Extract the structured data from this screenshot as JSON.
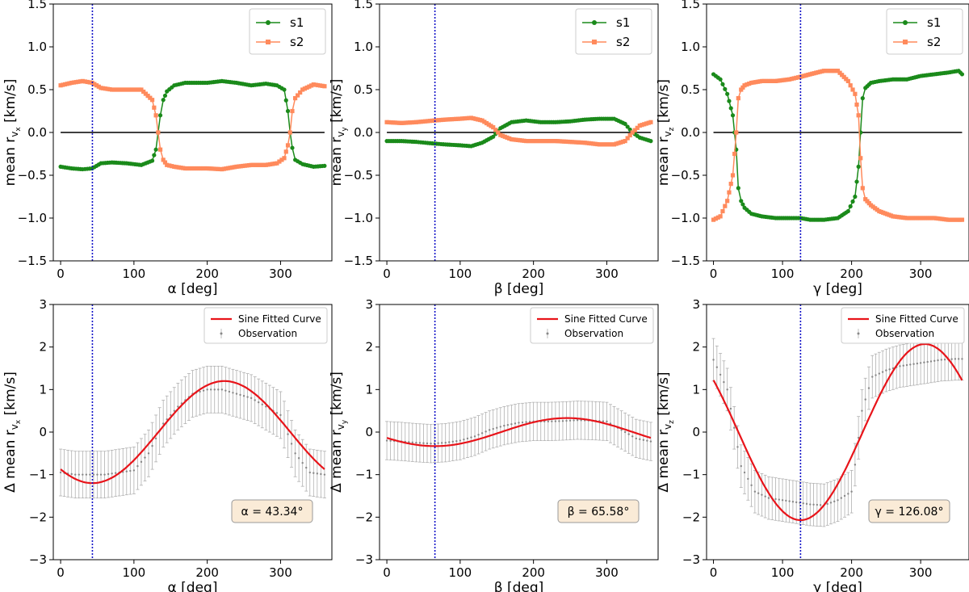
{
  "colors": {
    "s1": "#1a8a1a",
    "s2": "#ff8a5c",
    "fit": "#e8141a",
    "vline": "#1010c8",
    "zero": "#000000",
    "obs": "#888888",
    "annot_bg": "#faebd7"
  },
  "chart_data": [
    {
      "type": "line",
      "panel": "top-left",
      "xlabel": "α [deg]",
      "ylabel_main": "mean r",
      "ylabel_sub": "v",
      "ylabel_subsub": "x",
      "ylabel_unit": "[km/s]",
      "xlim": [
        -10,
        370
      ],
      "ylim": [
        -1.5,
        1.5
      ],
      "xticks": [
        0,
        100,
        200,
        300
      ],
      "yticks": [
        -1.5,
        -1.0,
        -0.5,
        0.0,
        0.5,
        1.0,
        1.5
      ],
      "vline": 43.34,
      "series": [
        {
          "name": "s1",
          "marker": "circle",
          "x": [
            0,
            15,
            30,
            43,
            55,
            70,
            90,
            110,
            125,
            130,
            133,
            136,
            140,
            145,
            155,
            170,
            185,
            200,
            220,
            240,
            260,
            280,
            295,
            305,
            310,
            313,
            316,
            320,
            330,
            345,
            360
          ],
          "y": [
            -0.4,
            -0.42,
            -0.43,
            -0.42,
            -0.36,
            -0.35,
            -0.36,
            -0.38,
            -0.33,
            -0.2,
            0.0,
            0.2,
            0.38,
            0.48,
            0.55,
            0.58,
            0.58,
            0.58,
            0.6,
            0.58,
            0.55,
            0.57,
            0.55,
            0.5,
            0.25,
            0.0,
            -0.18,
            -0.32,
            -0.37,
            -0.4,
            -0.39
          ]
        },
        {
          "name": "s2",
          "marker": "square",
          "x": [
            0,
            15,
            30,
            43,
            55,
            70,
            90,
            110,
            125,
            130,
            133,
            136,
            140,
            145,
            155,
            170,
            185,
            200,
            220,
            240,
            260,
            280,
            295,
            305,
            310,
            313,
            316,
            320,
            330,
            345,
            360
          ],
          "y": [
            0.55,
            0.58,
            0.6,
            0.58,
            0.52,
            0.5,
            0.5,
            0.5,
            0.38,
            0.2,
            0.0,
            -0.2,
            -0.32,
            -0.38,
            -0.4,
            -0.42,
            -0.42,
            -0.42,
            -0.43,
            -0.4,
            -0.38,
            -0.38,
            -0.36,
            -0.3,
            -0.15,
            0.0,
            0.25,
            0.4,
            0.5,
            0.56,
            0.54
          ]
        }
      ],
      "legend": {
        "entries": [
          "s1",
          "s2"
        ],
        "loc": "upper right"
      }
    },
    {
      "type": "line",
      "panel": "top-middle",
      "xlabel": "β [deg]",
      "ylabel_main": "mean r",
      "ylabel_sub": "v",
      "ylabel_subsub": "y",
      "ylabel_unit": "[km/s]",
      "xlim": [
        -10,
        370
      ],
      "ylim": [
        -1.5,
        1.5
      ],
      "xticks": [
        0,
        100,
        200,
        300
      ],
      "yticks": [
        -1.5,
        -1.0,
        -0.5,
        0.0,
        0.5,
        1.0,
        1.5
      ],
      "vline": 65.58,
      "series": [
        {
          "name": "s1",
          "marker": "circle",
          "x": [
            0,
            20,
            40,
            65,
            80,
            100,
            115,
            130,
            145,
            155,
            170,
            190,
            210,
            230,
            250,
            270,
            290,
            310,
            325,
            335,
            345,
            360
          ],
          "y": [
            -0.1,
            -0.1,
            -0.11,
            -0.13,
            -0.14,
            -0.15,
            -0.16,
            -0.12,
            -0.05,
            0.05,
            0.12,
            0.14,
            0.12,
            0.12,
            0.13,
            0.15,
            0.16,
            0.16,
            0.1,
            0.0,
            -0.06,
            -0.1
          ]
        },
        {
          "name": "s2",
          "marker": "square",
          "x": [
            0,
            20,
            40,
            65,
            80,
            100,
            115,
            130,
            145,
            155,
            170,
            190,
            210,
            230,
            250,
            270,
            290,
            310,
            325,
            335,
            345,
            360
          ],
          "y": [
            0.12,
            0.11,
            0.12,
            0.14,
            0.15,
            0.16,
            0.17,
            0.14,
            0.06,
            -0.03,
            -0.08,
            -0.1,
            -0.1,
            -0.1,
            -0.11,
            -0.12,
            -0.14,
            -0.14,
            -0.1,
            0.0,
            0.08,
            0.12
          ]
        }
      ],
      "legend": {
        "entries": [
          "s1",
          "s2"
        ],
        "loc": "upper right"
      }
    },
    {
      "type": "line",
      "panel": "top-right",
      "xlabel": "γ [deg]",
      "ylabel_main": "mean r",
      "ylabel_sub": "v",
      "ylabel_subsub": "z",
      "ylabel_unit": "[km/s]",
      "xlim": [
        -10,
        370
      ],
      "ylim": [
        -1.5,
        1.5
      ],
      "xticks": [
        0,
        100,
        200,
        300
      ],
      "yticks": [
        -1.5,
        -1.0,
        -0.5,
        0.0,
        0.5,
        1.0,
        1.5
      ],
      "vline": 126.08,
      "series": [
        {
          "name": "s1",
          "marker": "circle",
          "x": [
            0,
            10,
            20,
            28,
            33,
            36,
            40,
            45,
            55,
            70,
            90,
            110,
            126,
            140,
            160,
            180,
            195,
            205,
            210,
            213,
            216,
            220,
            228,
            240,
            260,
            280,
            300,
            320,
            340,
            355,
            360
          ],
          "y": [
            0.68,
            0.62,
            0.45,
            0.2,
            -0.2,
            -0.65,
            -0.8,
            -0.88,
            -0.95,
            -0.98,
            -1.0,
            -1.0,
            -1.0,
            -1.02,
            -1.02,
            -1.0,
            -0.92,
            -0.75,
            -0.4,
            0.0,
            0.4,
            0.52,
            0.58,
            0.6,
            0.62,
            0.62,
            0.66,
            0.68,
            0.7,
            0.72,
            0.68
          ]
        },
        {
          "name": "s2",
          "marker": "square",
          "x": [
            0,
            10,
            20,
            28,
            33,
            36,
            40,
            45,
            55,
            70,
            90,
            110,
            126,
            140,
            160,
            180,
            195,
            205,
            210,
            213,
            216,
            220,
            228,
            240,
            260,
            280,
            300,
            320,
            340,
            355,
            360
          ],
          "y": [
            -1.02,
            -0.98,
            -0.8,
            -0.5,
            0.0,
            0.4,
            0.5,
            0.55,
            0.58,
            0.6,
            0.6,
            0.62,
            0.65,
            0.68,
            0.72,
            0.72,
            0.6,
            0.45,
            0.2,
            -0.3,
            -0.65,
            -0.78,
            -0.85,
            -0.92,
            -0.98,
            -1.0,
            -1.0,
            -1.0,
            -1.02,
            -1.02,
            -1.02
          ]
        }
      ],
      "legend": {
        "entries": [
          "s1",
          "s2"
        ],
        "loc": "upper right"
      }
    },
    {
      "type": "line",
      "panel": "bottom-left",
      "xlabel": "α [deg]",
      "ylabel_main": "Δ mean r",
      "ylabel_sub": "v",
      "ylabel_subsub": "x",
      "ylabel_unit": "[km/s]",
      "xlim": [
        -10,
        370
      ],
      "ylim": [
        -3,
        3
      ],
      "xticks": [
        0,
        100,
        200,
        300
      ],
      "yticks": [
        -3,
        -2,
        -1,
        0,
        1,
        2,
        3
      ],
      "vline": 43.34,
      "fit": {
        "name": "Sine Fitted Curve",
        "amplitude": 1.2,
        "phase_deg": 43.34,
        "offset": 0.0
      },
      "observation": {
        "name": "Observation",
        "x": [
          0,
          20,
          40,
          60,
          80,
          100,
          120,
          140,
          160,
          180,
          200,
          220,
          240,
          260,
          280,
          300,
          320,
          340,
          360
        ],
        "y": [
          -0.95,
          -1.0,
          -1.0,
          -1.0,
          -0.95,
          -0.9,
          -0.5,
          0.2,
          0.6,
          0.9,
          1.0,
          1.0,
          0.9,
          0.8,
          0.6,
          0.4,
          -0.5,
          -0.95,
          -1.0
        ],
        "err": 0.55
      },
      "annotation": "α = 43.34°",
      "legend": {
        "entries": [
          "Sine Fitted Curve",
          "Observation"
        ],
        "loc": "upper right"
      }
    },
    {
      "type": "line",
      "panel": "bottom-middle",
      "xlabel": "β [deg]",
      "ylabel_main": "Δ mean r",
      "ylabel_sub": "v",
      "ylabel_subsub": "y",
      "ylabel_unit": "[km/s]",
      "xlim": [
        -10,
        370
      ],
      "ylim": [
        -3,
        3
      ],
      "xticks": [
        0,
        100,
        200,
        300
      ],
      "yticks": [
        -3,
        -2,
        -1,
        0,
        1,
        2,
        3
      ],
      "vline": 65.58,
      "fit": {
        "name": "Sine Fitted Curve",
        "amplitude": 0.33,
        "phase_deg": 65.58,
        "offset": 0.0
      },
      "observation": {
        "name": "Observation",
        "x": [
          0,
          20,
          40,
          60,
          80,
          100,
          120,
          140,
          160,
          180,
          200,
          220,
          240,
          260,
          280,
          300,
          320,
          340,
          360
        ],
        "y": [
          -0.2,
          -0.22,
          -0.25,
          -0.27,
          -0.25,
          -0.2,
          -0.1,
          0.05,
          0.15,
          0.22,
          0.25,
          0.25,
          0.26,
          0.28,
          0.27,
          0.25,
          0.05,
          -0.15,
          -0.22
        ],
        "err": 0.45
      },
      "annotation": "β = 65.58°",
      "legend": {
        "entries": [
          "Sine Fitted Curve",
          "Observation"
        ],
        "loc": "upper right"
      }
    },
    {
      "type": "line",
      "panel": "bottom-right",
      "xlabel": "γ [deg]",
      "ylabel_main": "Δ mean r",
      "ylabel_sub": "v",
      "ylabel_subsub": "z",
      "ylabel_unit": "[km/s]",
      "xlim": [
        -10,
        370
      ],
      "ylim": [
        -3,
        3
      ],
      "xticks": [
        0,
        100,
        200,
        300
      ],
      "yticks": [
        -3,
        -2,
        -1,
        0,
        1,
        2,
        3
      ],
      "vline": 126.08,
      "fit": {
        "name": "Sine Fitted Curve",
        "amplitude": 2.07,
        "phase_deg": 126.08,
        "offset": 0.0
      },
      "observation": {
        "name": "Observation",
        "x": [
          0,
          20,
          40,
          60,
          80,
          100,
          120,
          140,
          160,
          180,
          200,
          215,
          230,
          250,
          270,
          290,
          310,
          330,
          350,
          360
        ],
        "y": [
          1.7,
          1.0,
          -0.8,
          -1.4,
          -1.55,
          -1.6,
          -1.65,
          -1.7,
          -1.72,
          -1.6,
          -1.4,
          0.5,
          1.3,
          1.45,
          1.55,
          1.6,
          1.65,
          1.7,
          1.72,
          1.72
        ],
        "err": 0.5
      },
      "annotation": "γ = 126.08°",
      "legend": {
        "entries": [
          "Sine Fitted Curve",
          "Observation"
        ],
        "loc": "upper right"
      }
    }
  ]
}
